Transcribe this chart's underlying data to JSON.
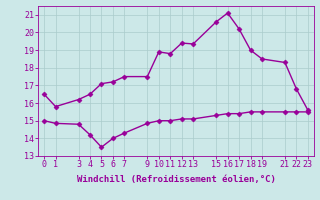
{
  "xlabel": "Windchill (Refroidissement éolien,°C)",
  "x_ticks": [
    0,
    1,
    3,
    4,
    5,
    6,
    7,
    9,
    10,
    11,
    12,
    13,
    15,
    16,
    17,
    18,
    19,
    21,
    22,
    23
  ],
  "upper_line": {
    "x": [
      0,
      1,
      3,
      4,
      5,
      6,
      7,
      9,
      10,
      11,
      12,
      13,
      15,
      16,
      17,
      18,
      19,
      21,
      22,
      23
    ],
    "y": [
      16.5,
      15.8,
      16.2,
      16.5,
      17.1,
      17.2,
      17.5,
      17.5,
      18.9,
      18.8,
      19.4,
      19.35,
      20.6,
      21.1,
      20.2,
      19.0,
      18.5,
      18.3,
      16.8,
      15.6
    ],
    "color": "#990099",
    "linewidth": 1.0,
    "marker": "D",
    "markersize": 2.5
  },
  "lower_line": {
    "x": [
      0,
      1,
      3,
      4,
      5,
      6,
      7,
      9,
      10,
      11,
      12,
      13,
      15,
      16,
      17,
      18,
      19,
      21,
      22,
      23
    ],
    "y": [
      15.0,
      14.85,
      14.8,
      14.2,
      13.5,
      14.0,
      14.3,
      14.85,
      15.0,
      15.0,
      15.1,
      15.1,
      15.3,
      15.4,
      15.4,
      15.5,
      15.5,
      15.5,
      15.5,
      15.5
    ],
    "color": "#990099",
    "linewidth": 1.0,
    "marker": "D",
    "markersize": 2.5
  },
  "xlim": [
    -0.5,
    23.5
  ],
  "ylim": [
    13,
    21.5
  ],
  "yticks": [
    13,
    14,
    15,
    16,
    17,
    18,
    19,
    20,
    21
  ],
  "bg_color": "#cce8e8",
  "grid_color": "#aacccc",
  "tick_label_fontsize": 6,
  "axis_label_fontsize": 6.5
}
